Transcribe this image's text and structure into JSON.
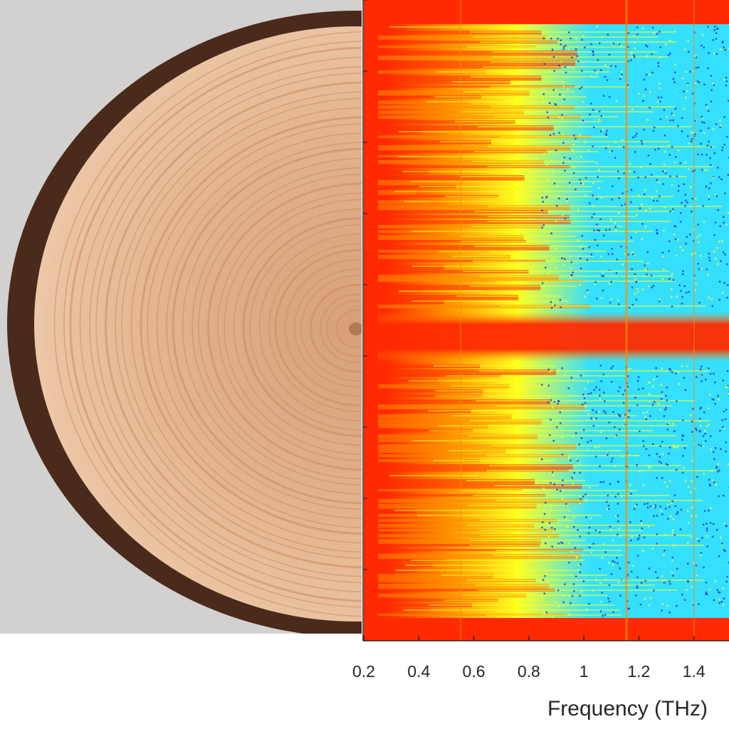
{
  "photo": {
    "subject": "tree-ring-cross-section"
  },
  "chart_data": {
    "type": "heatmap",
    "title": "",
    "xlabel": "Frequency (THz)",
    "ylabel": "",
    "xlim": [
      0.2,
      1.52
    ],
    "xticks": [
      0.2,
      0.4,
      0.6,
      0.8,
      1,
      1.2,
      1.4
    ],
    "xtick_labels": [
      "0.2",
      "0.4",
      "0.6",
      "0.8",
      "1",
      "1.2",
      "1.4"
    ],
    "colormap": "jet",
    "grid": false,
    "legend": "none",
    "colors": {
      "high": "#ff2a00",
      "upper": "#ff8c00",
      "mid": "#ffff20",
      "low": "#35e0ff",
      "lowest": "#1f2fd0"
    }
  }
}
